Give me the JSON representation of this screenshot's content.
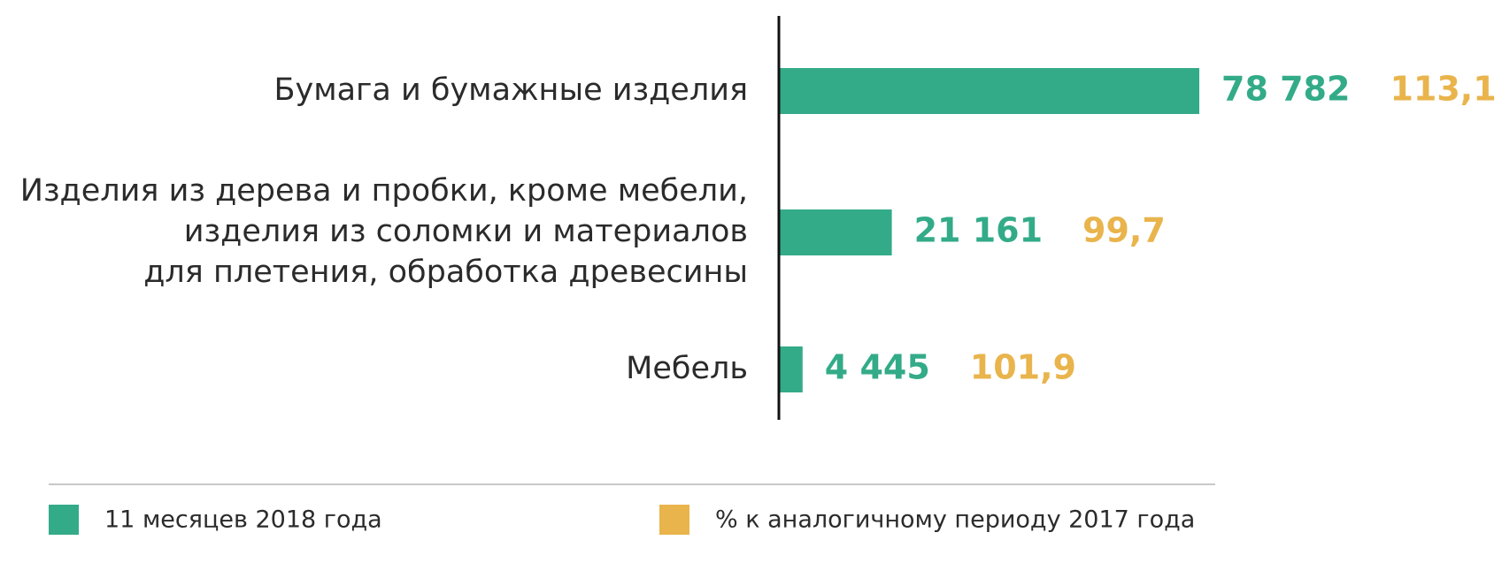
{
  "chart_data": {
    "type": "bar",
    "orientation": "horizontal",
    "categories": [
      [
        "Бумага и бумажные изделия"
      ],
      [
        "Изделия из дерева и пробки, кроме мебели,",
        "изделия из соломки и материалов",
        "для плетения, обработка древесины"
      ],
      [
        "Мебель"
      ]
    ],
    "series": [
      {
        "name": "11 месяцев 2018 года",
        "color": "#33ab88",
        "values": [
          78782,
          21161,
          4445
        ],
        "value_labels": [
          "78 782",
          "21 161",
          "4 445"
        ]
      },
      {
        "name": "% к аналогичному периоду 2017 года",
        "color": "#e9b44c",
        "values": [
          113.1,
          99.7,
          101.9
        ],
        "value_labels": [
          "113,1",
          "99,7",
          "101,9"
        ]
      }
    ]
  }
}
